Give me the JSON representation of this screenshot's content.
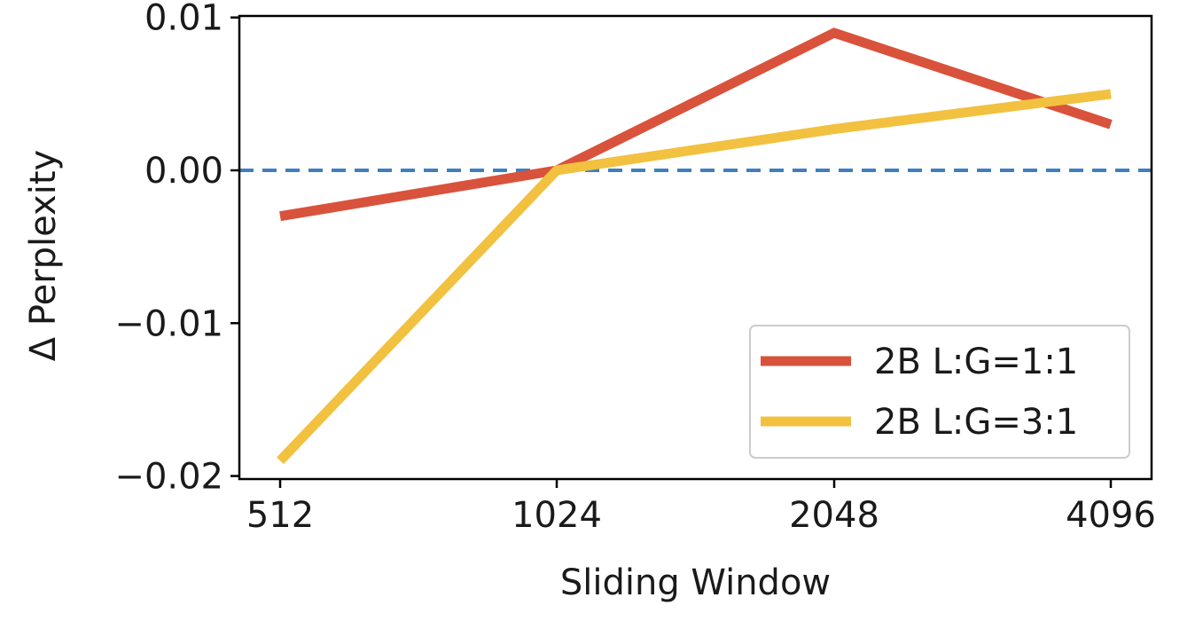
{
  "chart_data": {
    "type": "line",
    "title": "",
    "xlabel": "Sliding Window",
    "ylabel": "Δ Perplexity",
    "categories": [
      "512",
      "1024",
      "2048",
      "4096"
    ],
    "series": [
      {
        "name": "2B L:G=1:1",
        "color": "#d9523b",
        "values": [
          -0.003,
          0.0,
          0.009,
          0.003
        ]
      },
      {
        "name": "2B L:G=3:1",
        "color": "#f2c140",
        "values": [
          -0.019,
          0.0,
          0.0027,
          0.005
        ]
      }
    ],
    "ylim": [
      -0.0202,
      0.0101
    ],
    "yticks": [
      0.01,
      0.0,
      -0.01,
      -0.02
    ],
    "ytick_labels": [
      "0.01",
      "0.00",
      "−0.01",
      "−0.02"
    ],
    "reference_line": {
      "y": 0.0,
      "style": "dashed",
      "color": "#3f7fbf"
    },
    "legend": {
      "placement": "lower-right"
    },
    "grid": false
  }
}
